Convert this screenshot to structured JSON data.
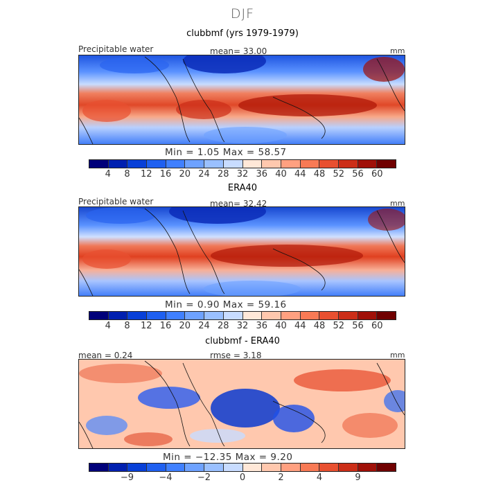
{
  "figure": {
    "title": "DJF"
  },
  "panels": [
    {
      "title": "clubbmf (yrs 1979-1979)",
      "left_label": "Precipitable water",
      "mid_label": "mean=  33.00",
      "right_label": "mm",
      "min_max": "Min =    1.05  Max =   58.57",
      "colorbar": {
        "colors": [
          "#00007a",
          "#0020b0",
          "#0840d8",
          "#1f60f0",
          "#4080ff",
          "#6ea2ff",
          "#9ac0ff",
          "#c8dcff",
          "#ffe8d8",
          "#ffc8ae",
          "#ffa080",
          "#f87a55",
          "#e85030",
          "#cc2e18",
          "#a01008",
          "#700000"
        ],
        "ticks": [
          "4",
          "8",
          "12",
          "16",
          "20",
          "24",
          "28",
          "32",
          "36",
          "40",
          "44",
          "48",
          "52",
          "56",
          "60"
        ]
      }
    },
    {
      "title": "ERA40",
      "left_label": "Precipitable water",
      "mid_label": "mean=  32.42",
      "right_label": "mm",
      "min_max": "Min =    0.90  Max =   59.16",
      "colorbar": {
        "colors": [
          "#00007a",
          "#0020b0",
          "#0840d8",
          "#1f60f0",
          "#4080ff",
          "#6ea2ff",
          "#9ac0ff",
          "#c8dcff",
          "#ffe8d8",
          "#ffc8ae",
          "#ffa080",
          "#f87a55",
          "#e85030",
          "#cc2e18",
          "#a01008",
          "#700000"
        ],
        "ticks": [
          "4",
          "8",
          "12",
          "16",
          "20",
          "24",
          "28",
          "32",
          "36",
          "40",
          "44",
          "48",
          "52",
          "56",
          "60"
        ]
      }
    },
    {
      "title": "clubbmf - ERA40",
      "left_label": "mean =   0.24",
      "mid_label": "rmse =    3.18",
      "right_label": "mm",
      "min_max": "Min = −12.35  Max =    9.20",
      "colorbar": {
        "colors": [
          "#00007a",
          "#0020b0",
          "#0840d8",
          "#1f60f0",
          "#4080ff",
          "#6ea2ff",
          "#9ac0ff",
          "#c8dcff",
          "#ffe8d8",
          "#ffc8ae",
          "#ffa080",
          "#f87a55",
          "#e85030",
          "#cc2e18",
          "#a01008",
          "#700000"
        ],
        "ticks": [
          "−9",
          "−4",
          "−2",
          "0",
          "2",
          "4",
          "9"
        ]
      }
    }
  ]
}
